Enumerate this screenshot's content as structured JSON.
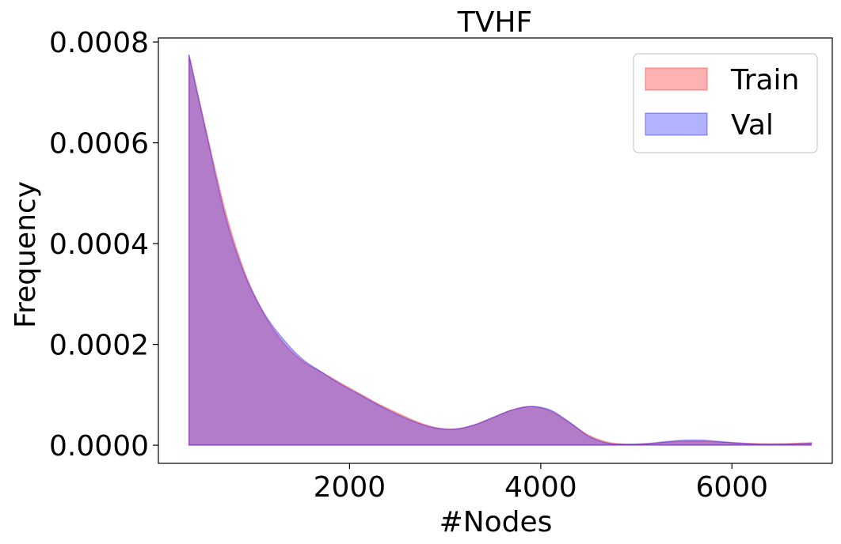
{
  "chart_data": {
    "type": "area",
    "title": "TVHF",
    "xlabel": "#Nodes",
    "ylabel": "Frequency",
    "xlim": [
      0,
      7050
    ],
    "ylim": [
      -3.6e-05,
      0.000808
    ],
    "x_ticks": [
      2000,
      4000,
      6000
    ],
    "x_tick_labels": [
      "2000",
      "4000",
      "6000"
    ],
    "y_ticks": [
      0.0,
      0.0002,
      0.0004,
      0.0006,
      0.0008
    ],
    "y_tick_labels": [
      "0.0000",
      "0.0002",
      "0.0004",
      "0.0006",
      "0.0008"
    ],
    "legend_position": "top-right",
    "grid": false,
    "series": [
      {
        "name": "Train",
        "color": "#ff0000",
        "x": [
          320,
          500,
          700,
          900,
          1100,
          1300,
          1500,
          1700,
          1900,
          2100,
          2300,
          2500,
          2700,
          2900,
          3100,
          3300,
          3500,
          3700,
          3900,
          4100,
          4300,
          4500,
          4700,
          4900,
          5100,
          5300,
          5500,
          5700,
          5900,
          6100,
          6300,
          6500,
          6700,
          6830
        ],
        "values": [
          0.000775,
          0.000625,
          0.000465,
          0.000345,
          0.000262,
          0.000205,
          0.000168,
          0.000146,
          0.000124,
          0.000103,
          8.2e-05,
          6.4e-05,
          4.7e-05,
          3.5e-05,
          3.2e-05,
          4e-05,
          5.5e-05,
          7e-05,
          7.7e-05,
          6.8e-05,
          4.5e-05,
          2e-05,
          6e-06,
          2e-06,
          3e-06,
          6e-06,
          8e-06,
          8e-06,
          6e-06,
          4e-06,
          3e-06,
          3e-06,
          4e-06,
          5e-06
        ]
      },
      {
        "name": "Val",
        "color": "#0000ff",
        "x": [
          320,
          500,
          700,
          900,
          1100,
          1300,
          1500,
          1700,
          1900,
          2100,
          2300,
          2500,
          2700,
          2900,
          3100,
          3300,
          3500,
          3700,
          3900,
          4100,
          4300,
          4500,
          4700,
          4900,
          5100,
          5300,
          5500,
          5700,
          5900,
          6100,
          6300,
          6500,
          6700,
          6830
        ],
        "values": [
          0.000775,
          0.00062,
          0.000455,
          0.00034,
          0.000264,
          0.000212,
          0.000172,
          0.000146,
          0.000122,
          0.000101,
          8e-05,
          6.1e-05,
          4.5e-05,
          3.4e-05,
          3.2e-05,
          4e-05,
          5.5e-05,
          7e-05,
          7.7e-05,
          7e-05,
          4.6e-05,
          1.8e-05,
          4e-06,
          2e-06,
          3e-06,
          7e-06,
          1e-05,
          1e-05,
          7e-06,
          4e-06,
          2e-06,
          2e-06,
          3e-06,
          4e-06
        ]
      }
    ]
  }
}
